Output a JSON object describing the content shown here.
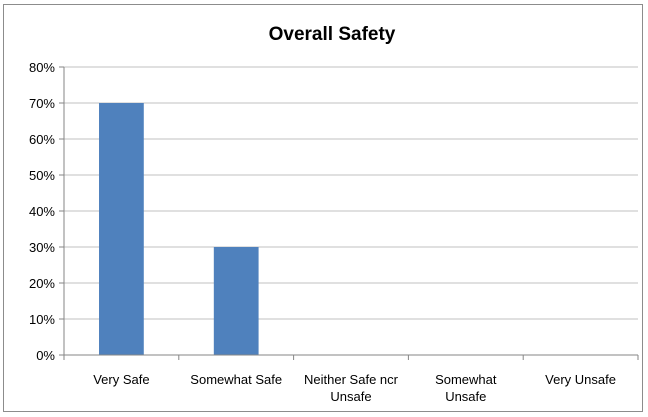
{
  "chart_data": {
    "type": "bar",
    "title": "Overall Safety",
    "categories": [
      [
        "Very Safe"
      ],
      [
        "Somewhat Safe"
      ],
      [
        "Neither Safe ncr",
        "Unsafe"
      ],
      [
        "Somewhat",
        "Unsafe"
      ],
      [
        "Very Unsafe"
      ]
    ],
    "values": [
      70,
      30,
      0,
      0,
      0
    ],
    "y_unit": "%",
    "ylim": [
      0,
      80
    ],
    "yticks": [
      "0%",
      "10%",
      "20%",
      "30%",
      "40%",
      "50%",
      "60%",
      "70%",
      "80%"
    ],
    "grid": true,
    "legend": "none",
    "bar_color": "#4f81bd",
    "grid_color": "#c0c0c0",
    "axis_color": "#868686"
  }
}
